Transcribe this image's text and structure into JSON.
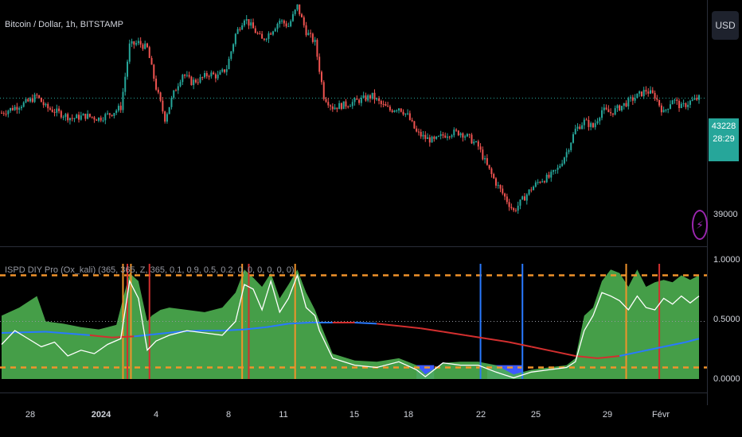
{
  "chart_data": [
    {
      "type": "candlestick",
      "title": "Bitcoin / Dollar, 1h, BITSTAMP",
      "last_price": "43228",
      "countdown": "28:29",
      "price_axis_label": "39000",
      "currency": "USD",
      "ylim": [
        38000,
        46500
      ],
      "x_ticks": [
        "28",
        "2024",
        "4",
        "8",
        "11",
        "15",
        "18",
        "22",
        "25",
        "29",
        "Févr"
      ],
      "close_path": [
        [
          0,
          42700
        ],
        [
          3,
          42900
        ],
        [
          6,
          43100
        ],
        [
          8,
          43300
        ],
        [
          10,
          42900
        ],
        [
          13,
          42700
        ],
        [
          16,
          42500
        ],
        [
          19,
          42600
        ],
        [
          22,
          42500
        ],
        [
          25,
          42700
        ],
        [
          27,
          42900
        ],
        [
          29,
          45100
        ],
        [
          31,
          45200
        ],
        [
          33,
          45000
        ],
        [
          35,
          43600
        ],
        [
          37,
          42500
        ],
        [
          39,
          43400
        ],
        [
          41,
          44100
        ],
        [
          43,
          43800
        ],
        [
          45,
          43900
        ],
        [
          47,
          44100
        ],
        [
          49,
          44000
        ],
        [
          51,
          44300
        ],
        [
          53,
          45500
        ],
        [
          55,
          46100
        ],
        [
          57,
          45700
        ],
        [
          59,
          45300
        ],
        [
          61,
          45600
        ],
        [
          63,
          46000
        ],
        [
          65,
          45800
        ],
        [
          67,
          46500
        ],
        [
          69,
          45600
        ],
        [
          71,
          45200
        ],
        [
          73,
          43300
        ],
        [
          75,
          42900
        ],
        [
          78,
          43000
        ],
        [
          80,
          43100
        ],
        [
          82,
          43200
        ],
        [
          84,
          43300
        ],
        [
          86,
          43000
        ],
        [
          88,
          42800
        ],
        [
          90,
          42900
        ],
        [
          92,
          42600
        ],
        [
          94,
          42000
        ],
        [
          96,
          41800
        ],
        [
          98,
          41700
        ],
        [
          100,
          41900
        ],
        [
          102,
          42000
        ],
        [
          104,
          42000
        ],
        [
          106,
          41800
        ],
        [
          108,
          41500
        ],
        [
          110,
          40800
        ],
        [
          112,
          40200
        ],
        [
          114,
          39700
        ],
        [
          116,
          39200
        ],
        [
          118,
          39600
        ],
        [
          120,
          40000
        ],
        [
          122,
          40300
        ],
        [
          124,
          40400
        ],
        [
          126,
          40700
        ],
        [
          128,
          41300
        ],
        [
          130,
          42100
        ],
        [
          132,
          42400
        ],
        [
          134,
          42200
        ],
        [
          136,
          42800
        ],
        [
          138,
          42700
        ],
        [
          140,
          42900
        ],
        [
          142,
          43100
        ],
        [
          144,
          43300
        ],
        [
          146,
          43500
        ],
        [
          148,
          43300
        ],
        [
          150,
          42700
        ],
        [
          152,
          43200
        ],
        [
          154,
          42900
        ],
        [
          156,
          43100
        ],
        [
          158,
          43228
        ]
      ]
    },
    {
      "type": "line",
      "title": "ISPD DIY Pro (Ox_kali) (365, 365, Z, 365, 0.1, 0.9, 0.5, 0.2, 0, 0, 0, 0, 0, 0)",
      "ylim": [
        -0.05,
        1.08
      ],
      "y_ticks": [
        "1.0000",
        "0.5000",
        "0.0000"
      ],
      "y_tick_values": [
        1.0,
        0.5,
        0.0
      ],
      "thresholds": [
        {
          "value": 0.9,
          "color": "#f0932b"
        },
        {
          "value": 0.1,
          "color": "#f0932b"
        }
      ],
      "midline": 0.5,
      "series": [
        {
          "role": "area-fill",
          "color": "#4caf50",
          "x": [
            0,
            4,
            8,
            10,
            14,
            18,
            22,
            26,
            27,
            29,
            31,
            33,
            34,
            36,
            38,
            42,
            46,
            50,
            53,
            55,
            57,
            59,
            61,
            63,
            65,
            67,
            69,
            71,
            72,
            75,
            80,
            85,
            90,
            94,
            96,
            100,
            104,
            108,
            112,
            116,
            120,
            124,
            128,
            130,
            132,
            134,
            136,
            138,
            140,
            142,
            144,
            146,
            148,
            150,
            152,
            154,
            156,
            158
          ],
          "y": [
            0.55,
            0.62,
            0.72,
            0.5,
            0.48,
            0.45,
            0.43,
            0.47,
            0.62,
            0.92,
            0.85,
            0.5,
            0.55,
            0.6,
            0.62,
            0.6,
            0.58,
            0.62,
            0.75,
            0.95,
            0.88,
            0.8,
            0.92,
            0.7,
            0.82,
            0.95,
            0.75,
            0.6,
            0.5,
            0.22,
            0.16,
            0.15,
            0.18,
            0.12,
            0.04,
            0.14,
            0.15,
            0.15,
            0.12,
            0.04,
            0.08,
            0.1,
            0.12,
            0.18,
            0.55,
            0.62,
            0.85,
            0.95,
            0.92,
            0.8,
            0.95,
            0.8,
            0.84,
            0.86,
            0.84,
            0.9,
            0.86,
            0.9
          ]
        },
        {
          "role": "oscillator",
          "color": "#ffffff",
          "x": [
            0,
            3,
            6,
            9,
            12,
            15,
            18,
            21,
            24,
            27,
            29,
            31,
            33,
            35,
            38,
            42,
            46,
            50,
            53,
            55,
            57,
            59,
            61,
            63,
            65,
            67,
            69,
            71,
            72,
            75,
            80,
            85,
            90,
            94,
            96,
            100,
            104,
            108,
            112,
            116,
            120,
            124,
            128,
            130,
            132,
            134,
            136,
            138,
            140,
            142,
            144,
            146,
            148,
            150,
            152,
            154,
            156,
            158
          ],
          "y": [
            0.3,
            0.42,
            0.35,
            0.28,
            0.32,
            0.2,
            0.25,
            0.22,
            0.3,
            0.35,
            0.85,
            0.7,
            0.25,
            0.33,
            0.38,
            0.42,
            0.4,
            0.38,
            0.5,
            0.82,
            0.78,
            0.6,
            0.85,
            0.58,
            0.7,
            0.9,
            0.62,
            0.55,
            0.42,
            0.18,
            0.12,
            0.1,
            0.15,
            0.08,
            0.02,
            0.14,
            0.12,
            0.12,
            0.06,
            0.01,
            0.06,
            0.08,
            0.1,
            0.15,
            0.42,
            0.55,
            0.75,
            0.72,
            0.68,
            0.6,
            0.72,
            0.62,
            0.6,
            0.7,
            0.65,
            0.72,
            0.66,
            0.72
          ]
        },
        {
          "role": "trend-line",
          "color_up": "#2979ff",
          "color_down": "#d32f2f",
          "x": [
            0,
            10,
            20,
            25,
            30,
            35,
            40,
            45,
            50,
            55,
            60,
            65,
            70,
            75,
            80,
            85,
            90,
            95,
            100,
            105,
            110,
            115,
            120,
            125,
            130,
            135,
            140,
            145,
            150,
            155,
            158
          ],
          "y": [
            0.4,
            0.41,
            0.38,
            0.36,
            0.37,
            0.39,
            0.41,
            0.42,
            0.42,
            0.43,
            0.45,
            0.48,
            0.49,
            0.49,
            0.49,
            0.48,
            0.46,
            0.44,
            0.41,
            0.38,
            0.35,
            0.32,
            0.28,
            0.24,
            0.2,
            0.18,
            0.2,
            0.24,
            0.28,
            0.32,
            0.35
          ],
          "trend": [
            "up",
            "up",
            "down",
            "down",
            "up",
            "up",
            "up",
            "up",
            "up",
            "up",
            "up",
            "up",
            "up",
            "down",
            "up",
            "down",
            "down",
            "down",
            "down",
            "down",
            "down",
            "down",
            "down",
            "down",
            "down",
            "down",
            "up",
            "up",
            "up",
            "up",
            "up"
          ]
        }
      ],
      "signal_lines": [
        {
          "x": 27.5,
          "color": "#f0932b"
        },
        {
          "x": 28.5,
          "color": "#d32f2f"
        },
        {
          "x": 29.3,
          "color": "#f0932b"
        },
        {
          "x": 33.5,
          "color": "#d32f2f"
        },
        {
          "x": 54.5,
          "color": "#f0932b"
        },
        {
          "x": 56,
          "color": "#d32f2f"
        },
        {
          "x": 66.5,
          "color": "#f0932b"
        },
        {
          "x": 108.5,
          "color": "#2979ff"
        },
        {
          "x": 118,
          "color": "#2979ff"
        },
        {
          "x": 141.5,
          "color": "#f0932b"
        },
        {
          "x": 149,
          "color": "#d32f2f"
        }
      ],
      "blue_zones": [
        [
          94,
          98
        ],
        [
          110,
          118
        ]
      ]
    }
  ]
}
